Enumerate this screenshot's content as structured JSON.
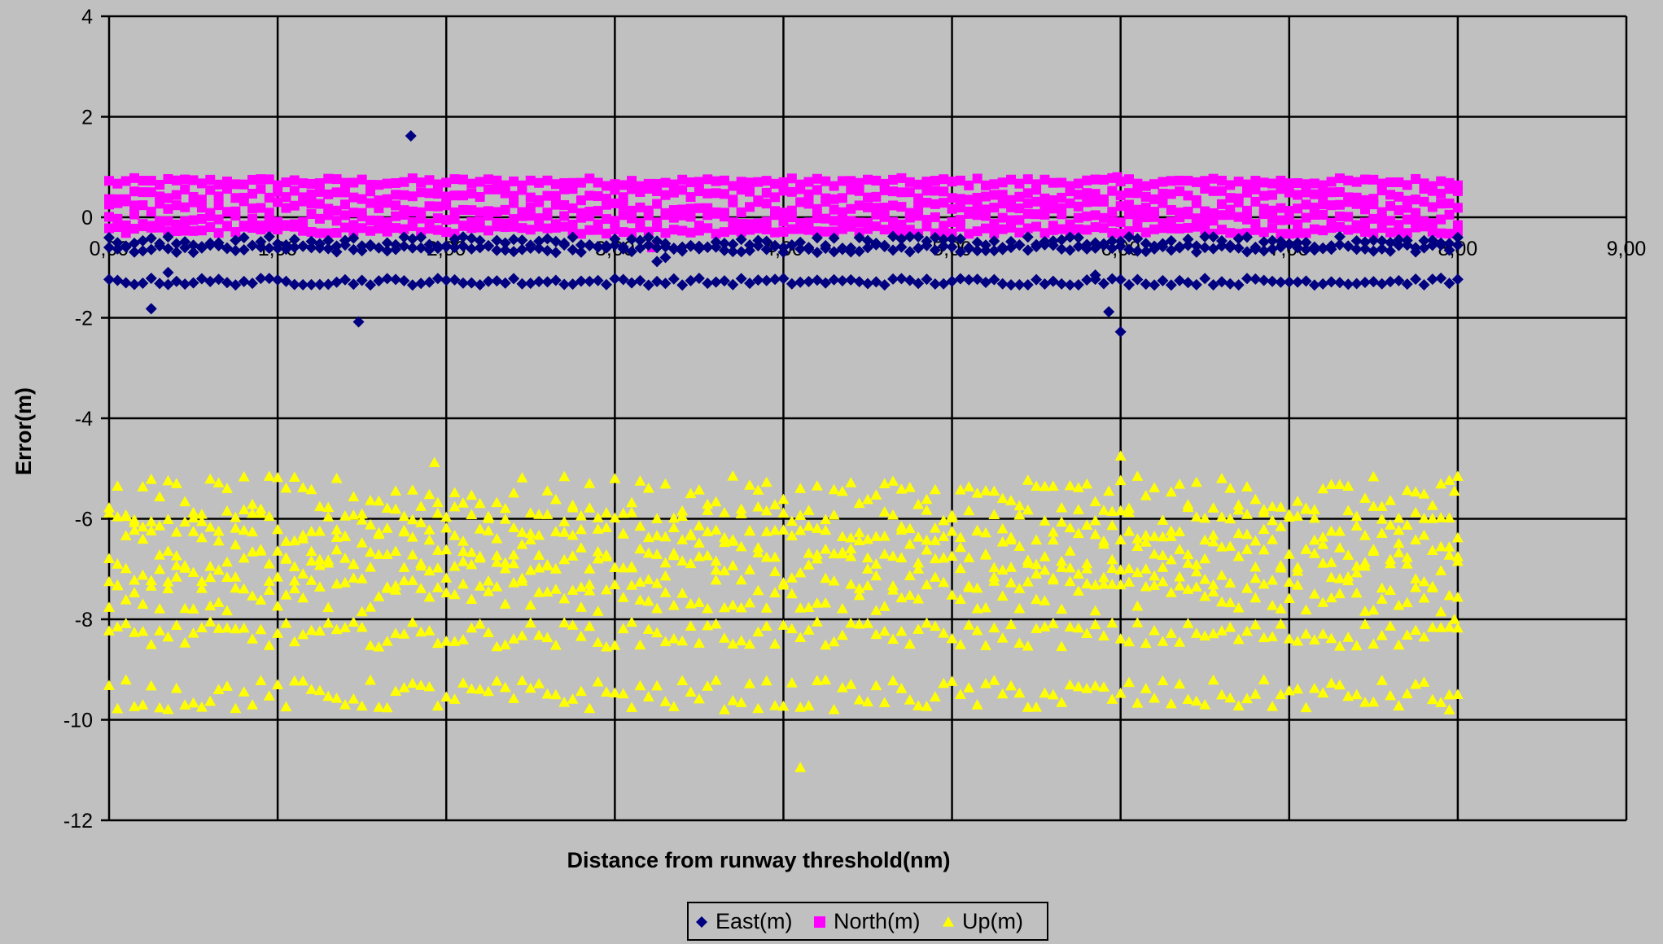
{
  "chart_data": {
    "type": "scatter",
    "title": "",
    "xlabel": "Distance from runway threshold(nm)",
    "ylabel": "Error(m)",
    "xlim": [
      0,
      9
    ],
    "ylim": [
      -12,
      4
    ],
    "x_ticks": [
      0,
      1,
      2,
      3,
      4,
      5,
      6,
      7,
      8,
      9
    ],
    "x_tick_labels": [
      "0,00",
      "1,00",
      "2,00",
      "3,00",
      "4,00",
      "5,00",
      "6,00",
      "7,00",
      "8,00",
      "9,00"
    ],
    "y_ticks": [
      4,
      2,
      0,
      -2,
      -4,
      -6,
      -8,
      -10,
      -12
    ],
    "y_tick_labels": [
      "4",
      "2",
      "0",
      "-2",
      "-4",
      "-6",
      "-8",
      "-10",
      "-12"
    ],
    "grid": true,
    "legend_position": "bottom-center",
    "x_sampling": {
      "start": 0,
      "end": 8.0,
      "step": 0.05
    },
    "series": [
      {
        "name": "East(m)",
        "marker": "diamond",
        "color": "#000080",
        "bands": [
          {
            "base": -0.5,
            "amplitude": 0.12
          },
          {
            "base": -0.62,
            "amplitude": 0.08
          },
          {
            "base": -1.28,
            "amplitude": 0.07
          }
        ],
        "extra_points": [
          {
            "x": 0.25,
            "y": -1.82
          },
          {
            "x": 0.35,
            "y": -1.1
          },
          {
            "x": 1.48,
            "y": -2.08
          },
          {
            "x": 1.79,
            "y": 1.62
          },
          {
            "x": 3.25,
            "y": -0.88
          },
          {
            "x": 3.3,
            "y": -0.8
          },
          {
            "x": 5.85,
            "y": -1.15
          },
          {
            "x": 5.93,
            "y": -1.88
          },
          {
            "x": 6.0,
            "y": -2.28
          }
        ]
      },
      {
        "name": "North(m)",
        "marker": "square",
        "color": "#ff00ff",
        "bands": [
          {
            "base": 0.7,
            "amplitude": 0.08
          },
          {
            "base": 0.45,
            "amplitude": 0.12
          },
          {
            "base": 0.2,
            "amplitude": 0.12
          },
          {
            "base": -0.05,
            "amplitude": 0.12
          },
          {
            "base": -0.25,
            "amplitude": 0.08
          }
        ],
        "extra_points": [
          {
            "x": 5.98,
            "y": 0.8
          },
          {
            "x": 3.22,
            "y": -0.6
          }
        ]
      },
      {
        "name": "Up(m)",
        "marker": "triangle",
        "color": "#ffff00",
        "bands": [
          {
            "base": -5.6,
            "amplitude": 0.45
          },
          {
            "base": -6.1,
            "amplitude": 0.35
          },
          {
            "base": -6.6,
            "amplitude": 0.4
          },
          {
            "base": -7.0,
            "amplitude": 0.4
          },
          {
            "base": -7.5,
            "amplitude": 0.35
          },
          {
            "base": -8.3,
            "amplitude": 0.25
          },
          {
            "base": -9.5,
            "amplitude": 0.3
          }
        ],
        "extra_points": [
          {
            "x": 1.93,
            "y": -4.88
          },
          {
            "x": 6.0,
            "y": -4.75
          },
          {
            "x": 5.93,
            "y": -5.45
          },
          {
            "x": 4.1,
            "y": -10.95
          },
          {
            "x": 7.98,
            "y": -5.45
          },
          {
            "x": 7.98,
            "y": -8.0
          },
          {
            "x": 7.95,
            "y": -9.8
          },
          {
            "x": 0.05,
            "y": -5.35
          }
        ]
      }
    ]
  },
  "legend": {
    "items": [
      {
        "label": "East(m)",
        "marker": "diamond",
        "color": "#000080"
      },
      {
        "label": "North(m)",
        "marker": "square",
        "color": "#ff00ff"
      },
      {
        "label": "Up(m)",
        "marker": "triangle",
        "color": "#ffff00"
      }
    ]
  },
  "colors": {
    "background": "#c0c0c0",
    "grid": "#000000"
  }
}
